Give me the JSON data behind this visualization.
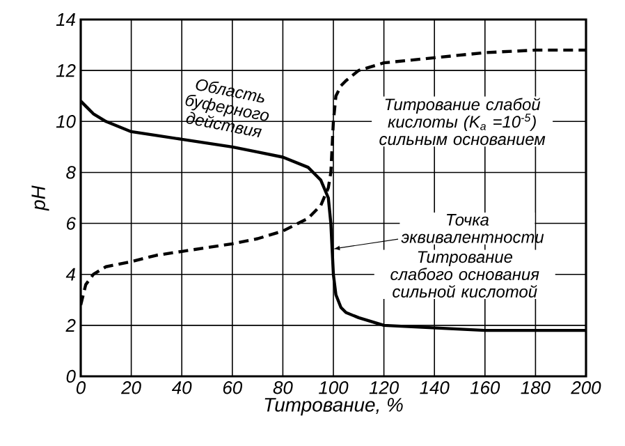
{
  "chart_data": {
    "type": "line",
    "xlabel": "Титрование, %",
    "ylabel": "pH",
    "xlim": [
      0,
      200
    ],
    "ylim": [
      0,
      14
    ],
    "xticks": [
      0,
      20,
      40,
      60,
      80,
      100,
      120,
      140,
      160,
      180,
      200
    ],
    "yticks": [
      0,
      2,
      4,
      6,
      8,
      10,
      12,
      14
    ],
    "grid": true,
    "series": [
      {
        "name": "Титрование слабой кислоты (K$_{a}$ =10$^{-5}$) сильным основанием",
        "color": "#000000",
        "line_style": "dashed",
        "x": [
          0,
          2,
          5,
          10,
          20,
          30,
          40,
          50,
          60,
          70,
          80,
          90,
          95,
          98,
          99,
          100,
          101,
          103,
          105,
          110,
          120,
          140,
          160,
          180,
          200
        ],
        "values": [
          2.8,
          3.6,
          4.0,
          4.3,
          4.5,
          4.75,
          4.9,
          5.05,
          5.2,
          5.4,
          5.7,
          6.2,
          6.7,
          7.4,
          8.0,
          10.0,
          11.0,
          11.4,
          11.6,
          12.0,
          12.3,
          12.5,
          12.7,
          12.8,
          12.8
        ]
      },
      {
        "name": "Титрование слабого основания сильной кислотой",
        "color": "#000000",
        "line_style": "solid",
        "x": [
          0,
          2,
          5,
          10,
          20,
          30,
          40,
          50,
          60,
          70,
          80,
          90,
          95,
          98,
          99,
          100,
          101,
          103,
          105,
          110,
          120,
          140,
          160,
          180,
          200
        ],
        "values": [
          10.8,
          10.6,
          10.3,
          10.0,
          9.6,
          9.45,
          9.3,
          9.15,
          9.0,
          8.8,
          8.6,
          8.2,
          7.7,
          7.0,
          6.0,
          4.0,
          3.2,
          2.7,
          2.5,
          2.3,
          2.0,
          1.9,
          1.8,
          1.8,
          1.8
        ]
      }
    ],
    "annotations": [
      "Область буферного действия",
      {
        "text": "Точка эквивалентности",
        "x": 100,
        "y": 5
      }
    ]
  }
}
